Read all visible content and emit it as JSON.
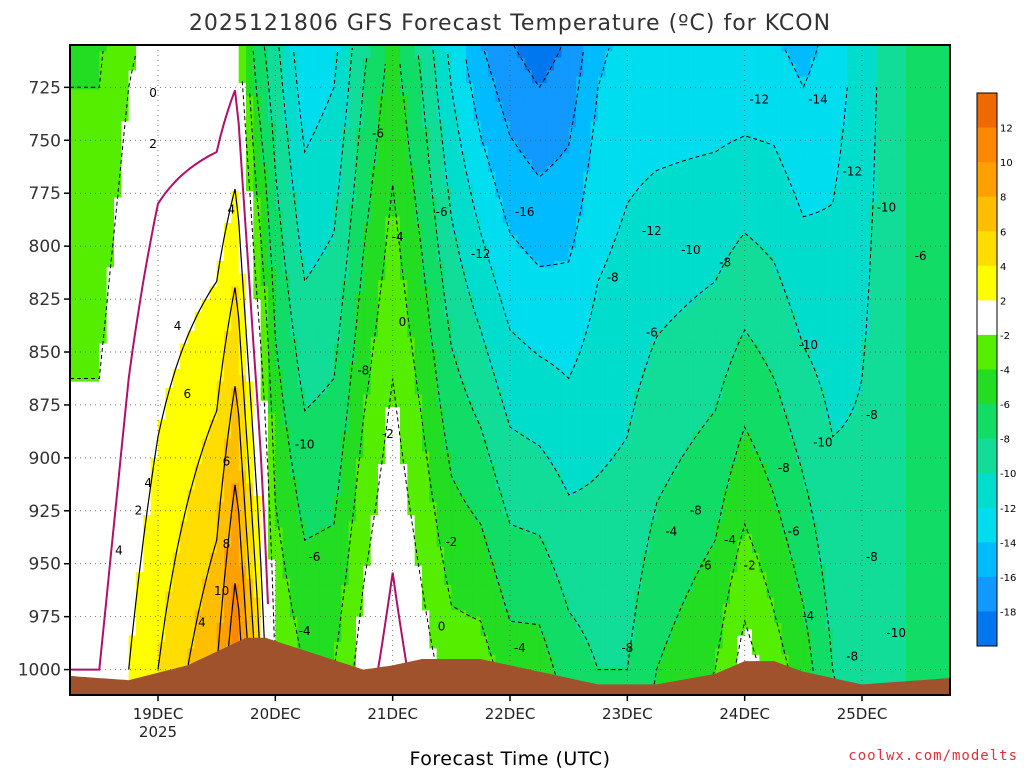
{
  "chart_data": {
    "type": "heatmap",
    "title": "2025121806 GFS Forecast Temperature (ºC) for KCON",
    "xlabel": "Forecast Time (UTC)",
    "ylabel": "",
    "x_tick_labels": [
      "19DEC",
      "20DEC",
      "21DEC",
      "22DEC",
      "23DEC",
      "24DEC",
      "25DEC"
    ],
    "x_tick_values_hours_from_init": [
      18,
      42,
      66,
      90,
      114,
      138,
      162
    ],
    "x_year_label": "2025",
    "x_range_hours": [
      0,
      180
    ],
    "y_tick_labels": [
      "725",
      "750",
      "775",
      "800",
      "825",
      "850",
      "875",
      "900",
      "925",
      "950",
      "975",
      "1000"
    ],
    "y_range_hpa": [
      705,
      1012
    ],
    "y_axis_inverted": true,
    "colorbar": {
      "tick_labels": [
        "12",
        "10",
        "8",
        "6",
        "4",
        "2",
        "-2",
        "-4",
        "-6",
        "-8",
        "-10",
        "-12",
        "-14",
        "-16",
        "-18"
      ],
      "levels": [
        14,
        12,
        10,
        8,
        6,
        4,
        2,
        -2,
        -4,
        -6,
        -8,
        -10,
        -12,
        -14,
        -16,
        -18,
        -20
      ],
      "colors": [
        "#ee6a00",
        "#ff8800",
        "#ffa000",
        "#ffbe00",
        "#ffdd00",
        "#ffff00",
        "#ffffff",
        "#55ee00",
        "#22dd22",
        "#11dd66",
        "#11dd99",
        "#00ddcc",
        "#00ddee",
        "#00bbff",
        "#1199ff",
        "#0077ee"
      ]
    },
    "temperature_profiles": [
      {
        "hour": 0,
        "t725": -4,
        "t1000": 0
      },
      {
        "hour": 6,
        "t725": -4,
        "t1000": 0
      },
      {
        "hour": 12,
        "t725": -2,
        "t1000": 2
      },
      {
        "hour": 18,
        "t725": -1,
        "t1000": 4
      },
      {
        "hour": 24,
        "t725": -1,
        "t1000": 6
      },
      {
        "hour": 30,
        "t725": -1,
        "t1000": 8
      },
      {
        "hour": 34,
        "t725": 0,
        "t1000": 12
      },
      {
        "hour": 38,
        "t725": -6,
        "t1000": 6
      },
      {
        "hour": 42,
        "t725": -9,
        "t1000": -2
      },
      {
        "hour": 48,
        "t725": -13,
        "t1000": -4
      },
      {
        "hour": 54,
        "t725": -12,
        "t1000": -4
      },
      {
        "hour": 60,
        "t725": -8,
        "t1000": -1
      },
      {
        "hour": 66,
        "t725": -5,
        "t1000": 1
      },
      {
        "hour": 72,
        "t725": -8,
        "t1000": -1
      },
      {
        "hour": 78,
        "t725": -12,
        "t1000": -3
      },
      {
        "hour": 84,
        "t725": -15,
        "t1000": -3
      },
      {
        "hour": 90,
        "t725": -17,
        "t1000": -5
      },
      {
        "hour": 96,
        "t725": -18,
        "t1000": -5
      },
      {
        "hour": 102,
        "t725": -17,
        "t1000": -7
      },
      {
        "hour": 108,
        "t725": -14,
        "t1000": -8
      },
      {
        "hour": 114,
        "t725": -13,
        "t1000": -8
      },
      {
        "hour": 120,
        "t725": -13,
        "t1000": -6
      },
      {
        "hour": 126,
        "t725": -13,
        "t1000": -5
      },
      {
        "hour": 132,
        "t725": -13,
        "t1000": -4
      },
      {
        "hour": 138,
        "t725": -13,
        "t1000": -1
      },
      {
        "hour": 144,
        "t725": -13,
        "t1000": -3
      },
      {
        "hour": 150,
        "t725": -14,
        "t1000": -5
      },
      {
        "hour": 156,
        "t725": -13,
        "t1000": -8
      },
      {
        "hour": 162,
        "t725": -11,
        "t1000": -9
      },
      {
        "hour": 168,
        "t725": -9,
        "t1000": -9
      },
      {
        "hour": 174,
        "t725": -7,
        "t1000": -7
      },
      {
        "hour": 180,
        "t725": -6,
        "t1000": -6
      }
    ],
    "surface_pressure_hpa": [
      {
        "hour": 0,
        "p": 1003
      },
      {
        "hour": 12,
        "p": 1005
      },
      {
        "hour": 24,
        "p": 998
      },
      {
        "hour": 36,
        "p": 985
      },
      {
        "hour": 40,
        "p": 985
      },
      {
        "hour": 48,
        "p": 991
      },
      {
        "hour": 60,
        "p": 1000
      },
      {
        "hour": 66,
        "p": 998
      },
      {
        "hour": 72,
        "p": 995
      },
      {
        "hour": 84,
        "p": 995
      },
      {
        "hour": 96,
        "p": 1001
      },
      {
        "hour": 108,
        "p": 1007
      },
      {
        "hour": 120,
        "p": 1007
      },
      {
        "hour": 132,
        "p": 1002
      },
      {
        "hour": 138,
        "p": 996
      },
      {
        "hour": 144,
        "p": 996
      },
      {
        "hour": 150,
        "p": 1001
      },
      {
        "hour": 162,
        "p": 1007
      },
      {
        "hour": 180,
        "p": 1004
      }
    ],
    "contour_labels": [
      {
        "text": "0",
        "hour": 17,
        "p": 728
      },
      {
        "text": "2",
        "hour": 17,
        "p": 752
      },
      {
        "text": "4",
        "hour": 33,
        "p": 783
      },
      {
        "text": "4",
        "hour": 22,
        "p": 838
      },
      {
        "text": "6",
        "hour": 24,
        "p": 870
      },
      {
        "text": "6",
        "hour": 32,
        "p": 902
      },
      {
        "text": "4",
        "hour": 16,
        "p": 912
      },
      {
        "text": "2",
        "hour": 14,
        "p": 925
      },
      {
        "text": "4",
        "hour": 10,
        "p": 944
      },
      {
        "text": "8",
        "hour": 32,
        "p": 941
      },
      {
        "text": "10",
        "hour": 31,
        "p": 963
      },
      {
        "text": "4",
        "hour": 27,
        "p": 978
      },
      {
        "text": "-6",
        "hour": 63,
        "p": 747
      },
      {
        "text": "-4",
        "hour": 67,
        "p": 796
      },
      {
        "text": "-6",
        "hour": 76,
        "p": 784
      },
      {
        "text": "-12",
        "hour": 84,
        "p": 804
      },
      {
        "text": "-16",
        "hour": 93,
        "p": 784
      },
      {
        "text": "0",
        "hour": 68,
        "p": 836
      },
      {
        "text": "-8",
        "hour": 60,
        "p": 859
      },
      {
        "text": "-2",
        "hour": 65,
        "p": 889
      },
      {
        "text": "-10",
        "hour": 48,
        "p": 894
      },
      {
        "text": "-6",
        "hour": 50,
        "p": 947
      },
      {
        "text": "-4",
        "hour": 48,
        "p": 982
      },
      {
        "text": "-2",
        "hour": 78,
        "p": 940
      },
      {
        "text": "0",
        "hour": 76,
        "p": 980
      },
      {
        "text": "-4",
        "hour": 92,
        "p": 990
      },
      {
        "text": "-8",
        "hour": 114,
        "p": 990
      },
      {
        "text": "-12",
        "hour": 141,
        "p": 731
      },
      {
        "text": "-14",
        "hour": 153,
        "p": 731
      },
      {
        "text": "-12",
        "hour": 119,
        "p": 793
      },
      {
        "text": "-10",
        "hour": 127,
        "p": 802
      },
      {
        "text": "-8",
        "hour": 134,
        "p": 808
      },
      {
        "text": "-8",
        "hour": 111,
        "p": 815
      },
      {
        "text": "-6",
        "hour": 119,
        "p": 841
      },
      {
        "text": "-12",
        "hour": 160,
        "p": 765
      },
      {
        "text": "-10",
        "hour": 167,
        "p": 782
      },
      {
        "text": "-6",
        "hour": 174,
        "p": 805
      },
      {
        "text": "-10",
        "hour": 151,
        "p": 847
      },
      {
        "text": "-10",
        "hour": 154,
        "p": 893
      },
      {
        "text": "-8",
        "hour": 164,
        "p": 880
      },
      {
        "text": "-8",
        "hour": 146,
        "p": 905
      },
      {
        "text": "-8",
        "hour": 128,
        "p": 925
      },
      {
        "text": "-4",
        "hour": 123,
        "p": 935
      },
      {
        "text": "-6",
        "hour": 148,
        "p": 935
      },
      {
        "text": "-4",
        "hour": 135,
        "p": 939
      },
      {
        "text": "-6",
        "hour": 130,
        "p": 951
      },
      {
        "text": "-2",
        "hour": 139,
        "p": 951
      },
      {
        "text": "-8",
        "hour": 164,
        "p": 947
      },
      {
        "text": "-4",
        "hour": 151,
        "p": 975
      },
      {
        "text": "-10",
        "hour": 169,
        "p": 983
      },
      {
        "text": "-8",
        "hour": 160,
        "p": 994
      }
    ]
  },
  "credit": "coolwx.com/modelts"
}
